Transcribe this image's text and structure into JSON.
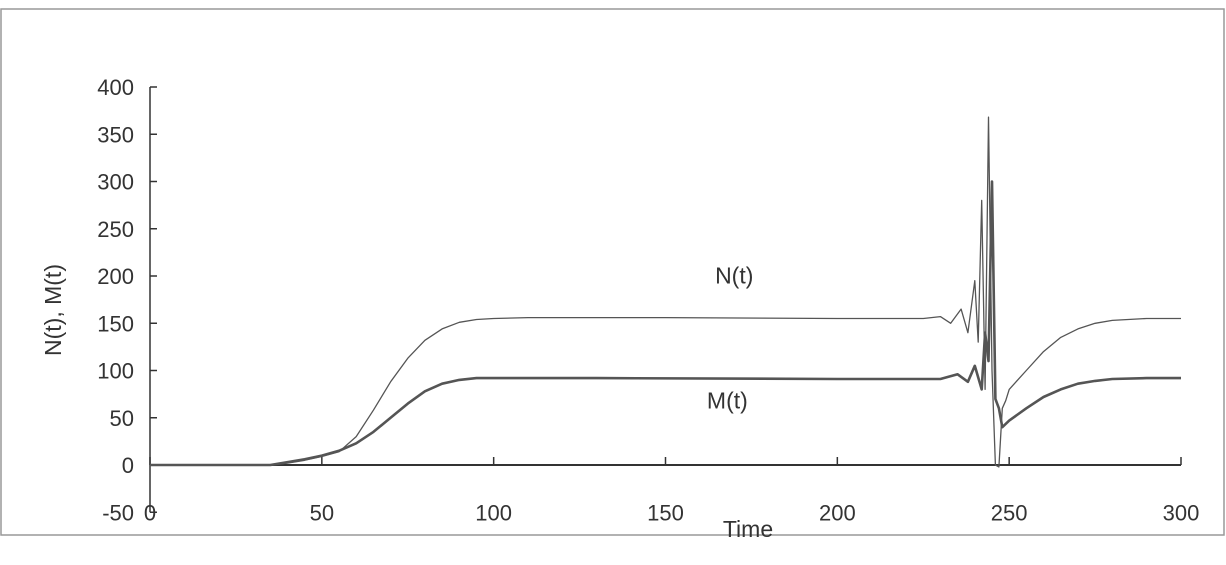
{
  "chart_data": {
    "type": "line",
    "xlabel": "Time",
    "ylabel": "N(t), M(t)",
    "xlim": [
      0,
      300
    ],
    "ylim": [
      -50,
      400
    ],
    "x_ticks": [
      "0",
      "50",
      "100",
      "150",
      "200",
      "250",
      "300"
    ],
    "y_ticks": [
      "-50",
      "0",
      "50",
      "100",
      "150",
      "200",
      "250",
      "300",
      "350",
      "400"
    ],
    "grid": false,
    "legend": "none",
    "colors": {
      "line": "#555555",
      "axis": "#333333",
      "frame": "#999999"
    },
    "annotations": [
      {
        "text": "N(t)",
        "x": 170,
        "y": 192
      },
      {
        "text": "M(t)",
        "x": 168,
        "y": 60
      }
    ],
    "series": [
      {
        "key": "N",
        "x": [
          0,
          35,
          40,
          45,
          50,
          55,
          60,
          65,
          70,
          75,
          80,
          85,
          90,
          95,
          100,
          110,
          130,
          150,
          200,
          225,
          230,
          233,
          236,
          238,
          240,
          241,
          242,
          243,
          244,
          245,
          246,
          247,
          248,
          249,
          250,
          255,
          260,
          265,
          270,
          275,
          280,
          290,
          300
        ],
        "y": [
          0,
          0,
          2,
          5,
          9,
          14,
          30,
          58,
          88,
          113,
          132,
          144,
          151,
          154,
          155,
          156,
          156,
          156,
          155,
          155,
          157,
          150,
          165,
          140,
          195,
          130,
          280,
          80,
          368,
          100,
          0,
          -2,
          60,
          68,
          80,
          100,
          120,
          135,
          144,
          150,
          153,
          155,
          155
        ]
      },
      {
        "key": "M",
        "x": [
          0,
          35,
          40,
          45,
          50,
          55,
          60,
          65,
          70,
          75,
          80,
          85,
          90,
          95,
          100,
          130,
          200,
          230,
          235,
          238,
          240,
          242,
          243,
          244,
          245,
          246,
          247,
          248,
          250,
          255,
          260,
          265,
          270,
          275,
          280,
          290,
          300
        ],
        "y": [
          0,
          0,
          3,
          6,
          10,
          15,
          23,
          35,
          50,
          65,
          78,
          86,
          90,
          92,
          92,
          92,
          91,
          91,
          96,
          88,
          105,
          80,
          140,
          110,
          300,
          70,
          60,
          40,
          47,
          60,
          72,
          80,
          86,
          89,
          91,
          92,
          92
        ]
      }
    ]
  }
}
